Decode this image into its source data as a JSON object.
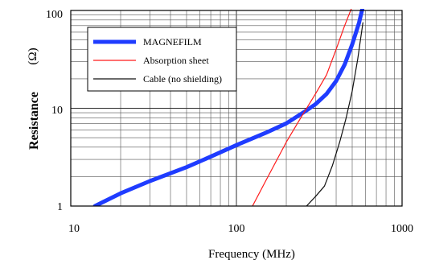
{
  "chart_data": {
    "type": "line",
    "xscale": "log",
    "yscale": "log",
    "xlim": [
      10,
      1000
    ],
    "ylim": [
      1,
      100
    ],
    "xlabel": "Frequency  (MHz)",
    "ylabel": "Resistance",
    "yunit": "(Ω)",
    "grid": true,
    "legend_position": "top-left",
    "x_ticks": [
      "10",
      "100",
      "1000"
    ],
    "y_ticks": [
      "1",
      "10",
      "100"
    ],
    "series": [
      {
        "name": "MAGNEFILM",
        "color": "#1f3cff",
        "style": "thick",
        "x": [
          14,
          20,
          30,
          50,
          70,
          100,
          150,
          200,
          260,
          300,
          350,
          400,
          450,
          500,
          550,
          580
        ],
        "y": [
          1.0,
          1.35,
          1.8,
          2.5,
          3.2,
          4.2,
          5.6,
          7.0,
          9.3,
          11.0,
          14.0,
          19.0,
          28.0,
          45.0,
          75.0,
          110.0
        ]
      },
      {
        "name": "Absorption sheet",
        "color": "#ff1a1a",
        "style": "thin",
        "x": [
          125,
          150,
          200,
          250,
          300,
          350,
          400,
          450,
          500
        ],
        "y": [
          1.0,
          1.8,
          4.5,
          8.5,
          14.0,
          22.0,
          40.0,
          70.0,
          110.0
        ]
      },
      {
        "name": "Cable (no shielding)",
        "color": "#111111",
        "style": "thin",
        "x": [
          265,
          300,
          340,
          380,
          420,
          460,
          500,
          540,
          580
        ],
        "y": [
          1.0,
          1.25,
          1.6,
          2.6,
          4.5,
          8.0,
          15.0,
          32.0,
          75.0
        ]
      }
    ]
  }
}
